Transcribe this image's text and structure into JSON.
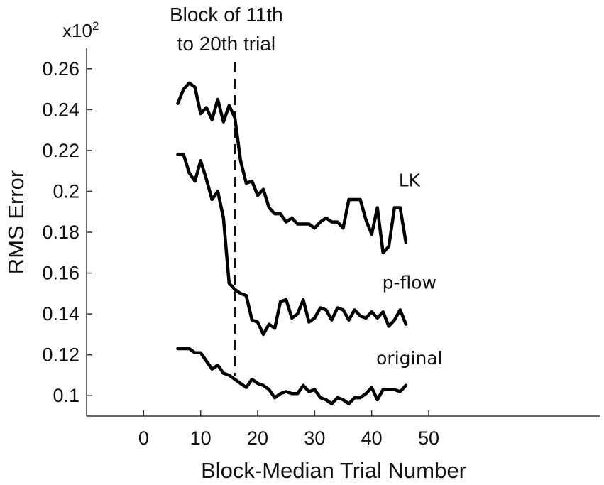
{
  "chart_data": {
    "type": "line",
    "xlabel": "Block-Median Trial Number",
    "ylabel": "RMS Error",
    "y_multiplier": {
      "base": "x10",
      "exp": "2"
    },
    "xlim": [
      -10,
      80
    ],
    "ylim": [
      0.09,
      0.27
    ],
    "xticks": [
      0,
      10,
      20,
      30,
      40,
      50
    ],
    "yticks": [
      0.1,
      0.12,
      0.14,
      0.16,
      0.18,
      0.2,
      0.22,
      0.24,
      0.26
    ],
    "ytick_labels": [
      "0.1",
      "0.12",
      "0.14",
      "0.16",
      "0.18",
      "0.2",
      "0.22",
      "0.24",
      "0.26"
    ],
    "annotation": {
      "lines": [
        "Block of 11th",
        "to 20th trial"
      ],
      "x": 16
    },
    "x": [
      6,
      7,
      8,
      9,
      10,
      11,
      12,
      13,
      14,
      15,
      16,
      17,
      18,
      19,
      20,
      21,
      22,
      23,
      24,
      25,
      26,
      27,
      28,
      29,
      30,
      31,
      32,
      33,
      34,
      35,
      36,
      37,
      38,
      39,
      40,
      41,
      42,
      43,
      44,
      45,
      46
    ],
    "series": [
      {
        "name": "LK",
        "values": [
          0.243,
          0.25,
          0.253,
          0.251,
          0.238,
          0.241,
          0.235,
          0.245,
          0.234,
          0.242,
          0.236,
          0.215,
          0.204,
          0.205,
          0.198,
          0.201,
          0.192,
          0.189,
          0.189,
          0.185,
          0.187,
          0.184,
          0.184,
          0.184,
          0.182,
          0.185,
          0.187,
          0.185,
          0.185,
          0.182,
          0.196,
          0.196,
          0.196,
          0.186,
          0.179,
          0.192,
          0.17,
          0.173,
          0.192,
          0.192,
          0.175
        ]
      },
      {
        "name": "p-flow",
        "values": [
          0.218,
          0.218,
          0.209,
          0.205,
          0.215,
          0.206,
          0.196,
          0.2,
          0.187,
          0.155,
          0.152,
          0.15,
          0.149,
          0.137,
          0.136,
          0.13,
          0.135,
          0.133,
          0.146,
          0.147,
          0.138,
          0.14,
          0.147,
          0.136,
          0.138,
          0.143,
          0.142,
          0.137,
          0.143,
          0.142,
          0.137,
          0.142,
          0.139,
          0.138,
          0.141,
          0.138,
          0.141,
          0.134,
          0.137,
          0.142,
          0.135
        ]
      },
      {
        "name": "original",
        "values": [
          0.123,
          0.123,
          0.123,
          0.121,
          0.121,
          0.117,
          0.113,
          0.115,
          0.111,
          0.11,
          0.108,
          0.106,
          0.104,
          0.108,
          0.106,
          0.105,
          0.103,
          0.099,
          0.101,
          0.102,
          0.101,
          0.101,
          0.105,
          0.102,
          0.103,
          0.099,
          0.098,
          0.096,
          0.099,
          0.098,
          0.096,
          0.099,
          0.099,
          0.101,
          0.104,
          0.098,
          0.103,
          0.103,
          0.103,
          0.102,
          0.105
        ]
      }
    ]
  }
}
